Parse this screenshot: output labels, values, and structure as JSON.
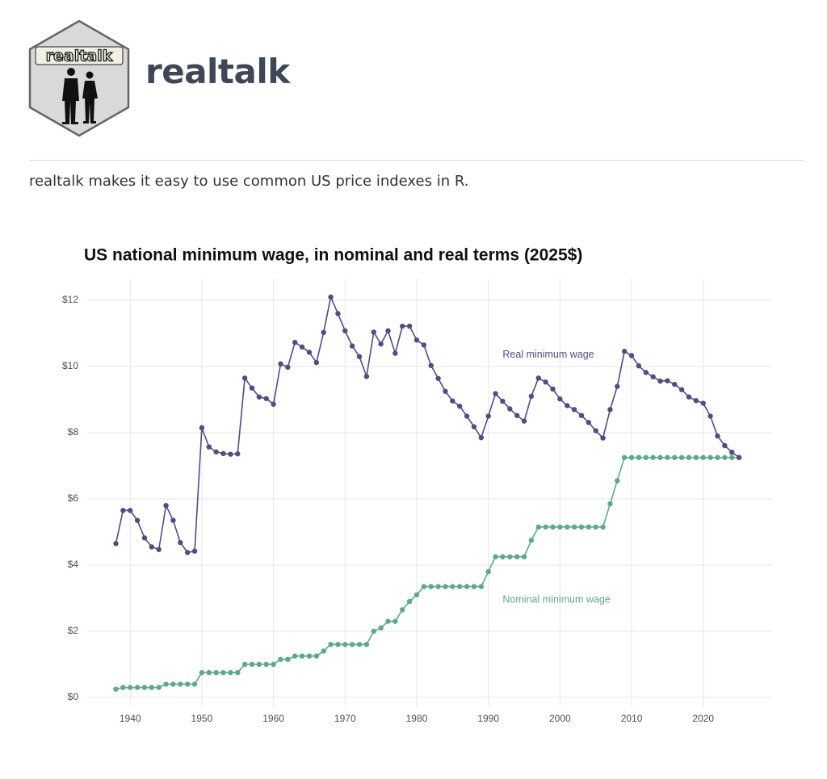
{
  "header": {
    "logo_text": "realtalk",
    "title": "realtalk"
  },
  "description": "realtalk makes it easy to use common US price indexes in R.",
  "chart_data": {
    "type": "line",
    "title": "US national minimum wage, in nominal and real terms (2025$)",
    "x": [
      1938,
      1939,
      1940,
      1941,
      1942,
      1943,
      1944,
      1945,
      1946,
      1947,
      1948,
      1949,
      1950,
      1951,
      1952,
      1953,
      1954,
      1955,
      1956,
      1957,
      1958,
      1959,
      1960,
      1961,
      1962,
      1963,
      1964,
      1965,
      1966,
      1967,
      1968,
      1969,
      1970,
      1971,
      1972,
      1973,
      1974,
      1975,
      1976,
      1977,
      1978,
      1979,
      1980,
      1981,
      1982,
      1983,
      1984,
      1985,
      1986,
      1987,
      1988,
      1989,
      1990,
      1991,
      1992,
      1993,
      1994,
      1995,
      1996,
      1997,
      1998,
      1999,
      2000,
      2001,
      2002,
      2003,
      2004,
      2005,
      2006,
      2007,
      2008,
      2009,
      2010,
      2011,
      2012,
      2013,
      2014,
      2015,
      2016,
      2017,
      2018,
      2019,
      2020,
      2021,
      2022,
      2023,
      2024,
      2025
    ],
    "series": [
      {
        "name": "Real minimum wage",
        "color": "#4f4d86",
        "values": [
          4.65,
          5.65,
          5.65,
          5.35,
          4.82,
          4.55,
          4.47,
          5.8,
          5.35,
          4.68,
          4.38,
          4.42,
          8.15,
          7.57,
          7.42,
          7.37,
          7.35,
          7.36,
          9.65,
          9.35,
          9.08,
          9.03,
          8.86,
          10.08,
          9.98,
          10.73,
          10.59,
          10.43,
          10.12,
          11.03,
          12.1,
          11.6,
          11.08,
          10.62,
          10.3,
          9.7,
          11.04,
          10.68,
          11.08,
          10.4,
          11.22,
          11.22,
          10.8,
          10.65,
          10.03,
          9.64,
          9.25,
          8.96,
          8.8,
          8.5,
          8.18,
          7.85,
          8.5,
          9.18,
          8.95,
          8.72,
          8.52,
          8.35,
          9.1,
          9.65,
          9.53,
          9.32,
          9.02,
          8.82,
          8.7,
          8.52,
          8.31,
          8.06,
          7.84,
          8.7,
          9.4,
          10.46,
          10.33,
          10.02,
          9.82,
          9.69,
          9.56,
          9.57,
          9.46,
          9.3,
          9.08,
          8.97,
          8.89,
          8.5,
          7.9,
          7.61,
          7.41,
          7.25
        ]
      },
      {
        "name": "Nominal minimum wage",
        "color": "#5aab88",
        "values": [
          0.25,
          0.3,
          0.3,
          0.3,
          0.3,
          0.3,
          0.3,
          0.4,
          0.4,
          0.4,
          0.4,
          0.4,
          0.75,
          0.75,
          0.75,
          0.75,
          0.75,
          0.75,
          1,
          1,
          1,
          1,
          1,
          1.15,
          1.15,
          1.25,
          1.25,
          1.25,
          1.25,
          1.4,
          1.6,
          1.6,
          1.6,
          1.6,
          1.6,
          1.6,
          2,
          2.1,
          2.3,
          2.3,
          2.65,
          2.9,
          3.1,
          3.35,
          3.35,
          3.35,
          3.35,
          3.35,
          3.35,
          3.35,
          3.35,
          3.35,
          3.8,
          4.25,
          4.25,
          4.25,
          4.25,
          4.25,
          4.75,
          5.15,
          5.15,
          5.15,
          5.15,
          5.15,
          5.15,
          5.15,
          5.15,
          5.15,
          5.15,
          5.85,
          6.55,
          7.25,
          7.25,
          7.25,
          7.25,
          7.25,
          7.25,
          7.25,
          7.25,
          7.25,
          7.25,
          7.25,
          7.25,
          7.25,
          7.25,
          7.25,
          7.25,
          7.25
        ]
      }
    ],
    "xlim": [
      1934,
      2029.5
    ],
    "xticks": [
      1940,
      1950,
      1960,
      1970,
      1980,
      1990,
      2000,
      2010,
      2020
    ],
    "ylim": [
      -0.27,
      12.66
    ],
    "yticks": [
      {
        "value": 0,
        "label": "$0"
      },
      {
        "value": 2,
        "label": "$2"
      },
      {
        "value": 4,
        "label": "$4"
      },
      {
        "value": 6,
        "label": "$6"
      },
      {
        "value": 8,
        "label": "$8"
      },
      {
        "value": 10,
        "label": "$10"
      },
      {
        "value": 12,
        "label": "$12"
      }
    ],
    "grid": true
  }
}
